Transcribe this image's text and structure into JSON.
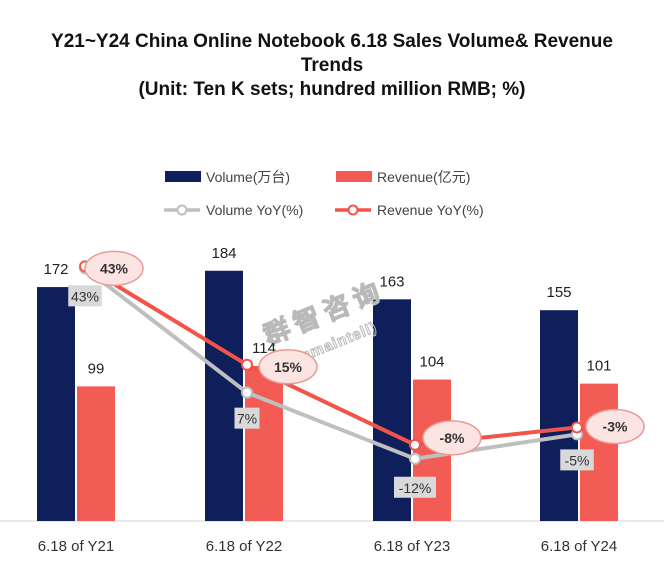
{
  "title": {
    "line1": "Y21~Y24 China Online Notebook 6.18 Sales Volume& Revenue",
    "line2": "Trends",
    "line3": "(Unit: Ten K sets; hundred million RMB; %)"
  },
  "legend": {
    "volume": "Volume(万台)",
    "revenue": "Revenue(亿元)",
    "volume_yoy": "Volume YoY(%)",
    "revenue_yoy": "Revenue YoY(%)"
  },
  "watermark": {
    "cn": "群智咨询",
    "en": "(Sigmaintell)"
  },
  "colors": {
    "volume": "#0f1f5c",
    "revenue": "#f25c55",
    "volume_yoy": "#bfbfbf",
    "revenue_yoy": "#f25449"
  },
  "chart_data": {
    "type": "bar",
    "categories": [
      "6.18 of Y21",
      "6.18 of Y22",
      "6.18 of Y23",
      "6.18 of Y24"
    ],
    "series": [
      {
        "name": "Volume(万台)",
        "values": [
          172,
          184,
          163,
          155
        ]
      },
      {
        "name": "Revenue(亿元)",
        "values": [
          99,
          114,
          104,
          101
        ]
      }
    ],
    "line_series": [
      {
        "name": "Volume YoY(%)",
        "values": [
          43,
          7,
          -12,
          -5
        ],
        "labels": [
          "43%",
          "7%",
          "-12%",
          "-5%"
        ]
      },
      {
        "name": "Revenue YoY(%)",
        "values": [
          43,
          15,
          -8,
          -3
        ],
        "labels": [
          "43%",
          "15%",
          "-8%",
          "-3%"
        ]
      }
    ],
    "title": "Y21~Y24 China Online Notebook 6.18 Sales Volume& Revenue Trends",
    "xlabel": "",
    "ylabel": "",
    "ylim": [
      0,
      200
    ]
  }
}
